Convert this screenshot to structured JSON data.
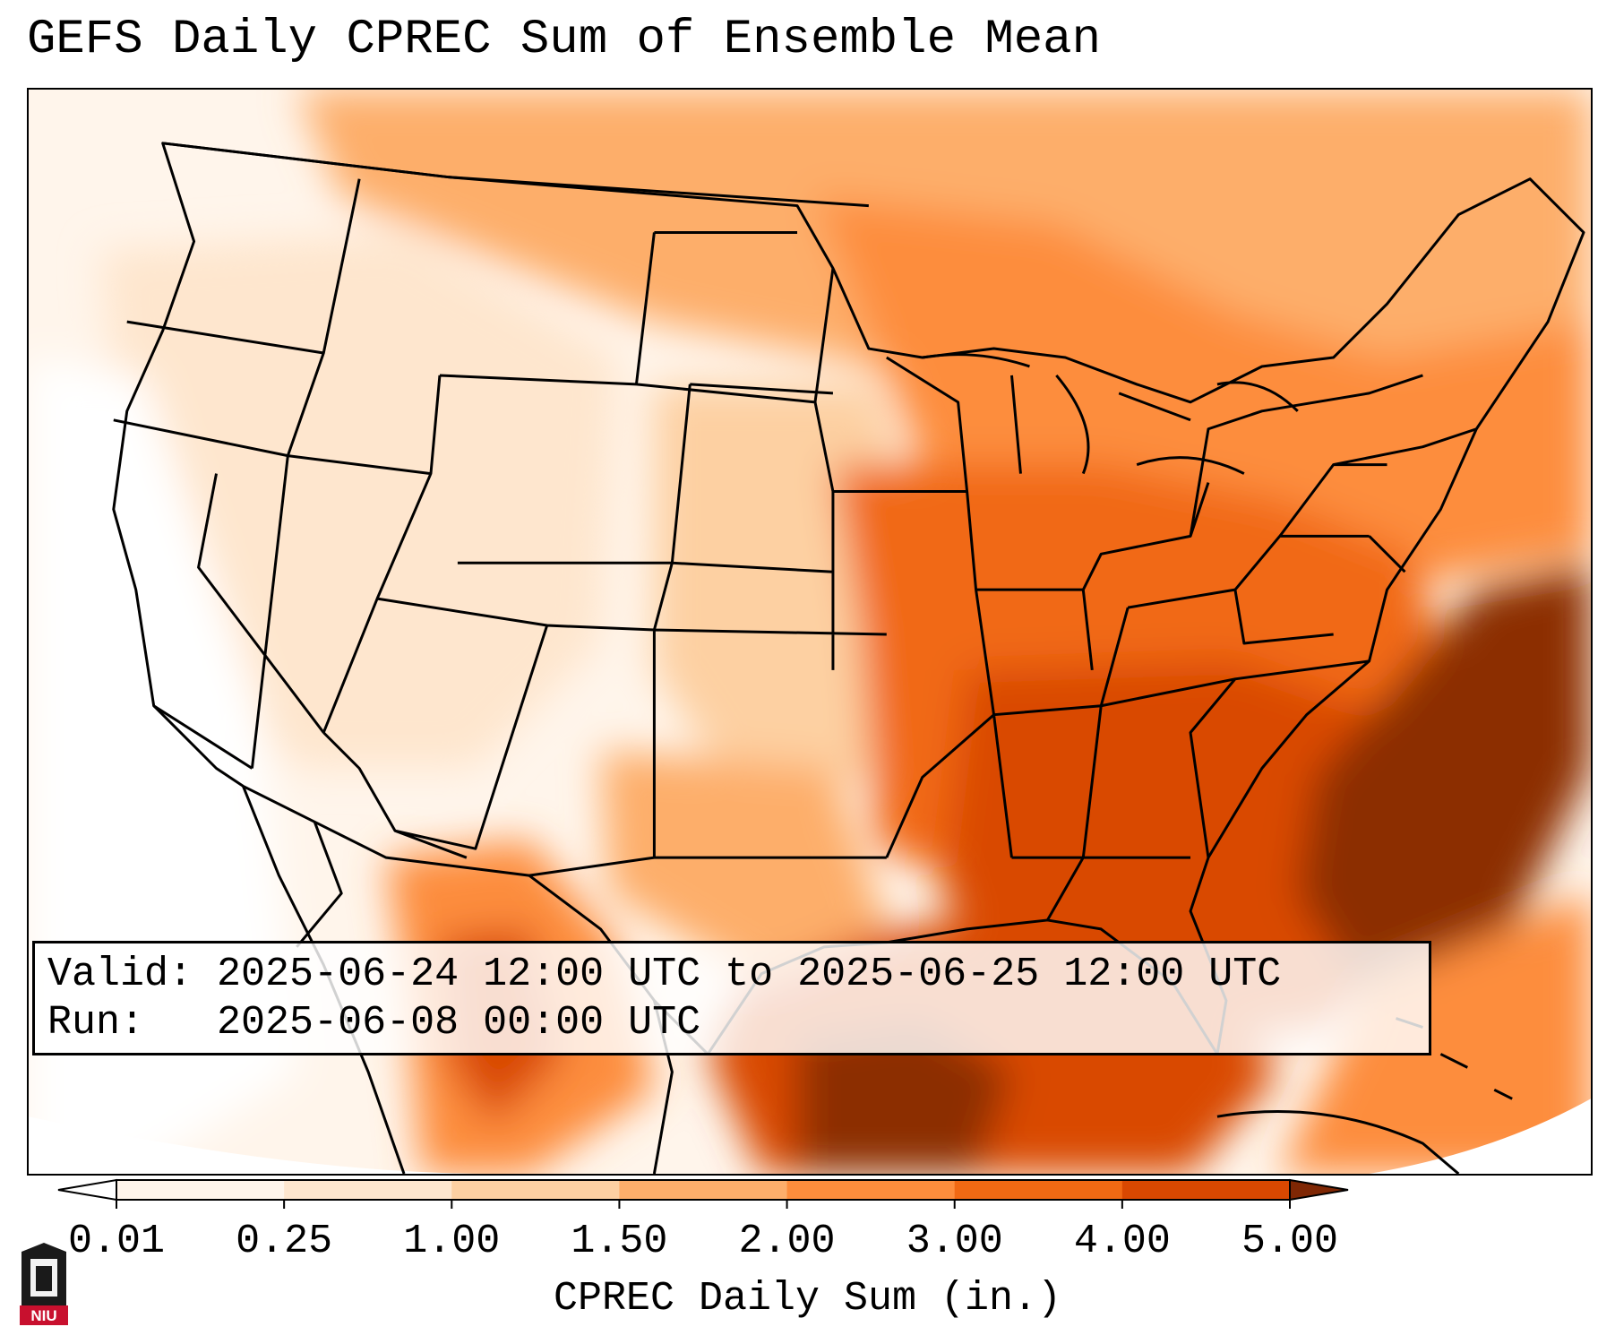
{
  "title": "GEFS Daily CPREC Sum of Ensemble Mean",
  "info": {
    "valid_label": "Valid:",
    "valid_value": "2025-06-24 12:00 UTC to 2025-06-25 12:00 UTC",
    "run_label": "Run:",
    "run_value": "2025-06-08 00:00 UTC"
  },
  "colorbar": {
    "label": "CPREC Daily Sum (in.)",
    "ticks": [
      "0.01",
      "0.25",
      "1.00",
      "1.50",
      "2.00",
      "3.00",
      "4.00",
      "5.00"
    ],
    "colors": [
      "#fff5eb",
      "#fee6ce",
      "#fdd0a2",
      "#fdae6b",
      "#fd8d3c",
      "#f16913",
      "#d94801",
      "#8c2d04"
    ],
    "under_color": "#ffffff",
    "over_color": "#7f2704"
  },
  "logo": {
    "text": "NIU",
    "colors": {
      "red": "#c8102e",
      "black": "#1a1a1a"
    }
  },
  "map": {
    "projection": "Lambert conformal",
    "region": "Contiguous United States",
    "boundaries": "state and country outlines"
  }
}
